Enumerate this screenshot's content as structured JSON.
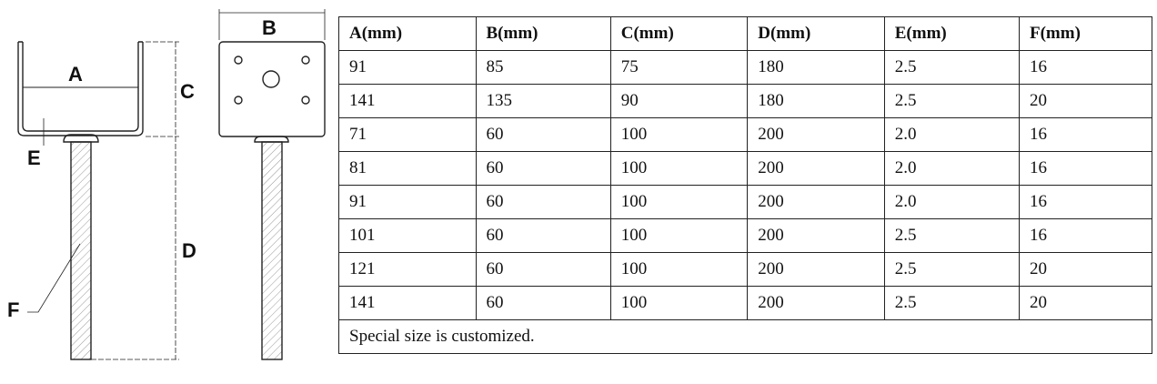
{
  "diagram": {
    "labels": [
      "A",
      "B",
      "C",
      "D",
      "E",
      "F"
    ]
  },
  "table": {
    "header": [
      "A(mm)",
      "B(mm)",
      "C(mm)",
      "D(mm)",
      "E(mm)",
      "F(mm)"
    ],
    "rows": [
      [
        "91",
        "85",
        "75",
        "180",
        "2.5",
        "16"
      ],
      [
        "141",
        "135",
        "90",
        "180",
        "2.5",
        "20"
      ],
      [
        "71",
        "60",
        "100",
        "200",
        "2.0",
        "16"
      ],
      [
        "81",
        "60",
        "100",
        "200",
        "2.0",
        "16"
      ],
      [
        "91",
        "60",
        "100",
        "200",
        "2.0",
        "16"
      ],
      [
        "101",
        "60",
        "100",
        "200",
        "2.5",
        "16"
      ],
      [
        "121",
        "60",
        "100",
        "200",
        "2.5",
        "20"
      ],
      [
        "141",
        "60",
        "100",
        "200",
        "2.5",
        "20"
      ]
    ],
    "note": "Special size is customized."
  }
}
